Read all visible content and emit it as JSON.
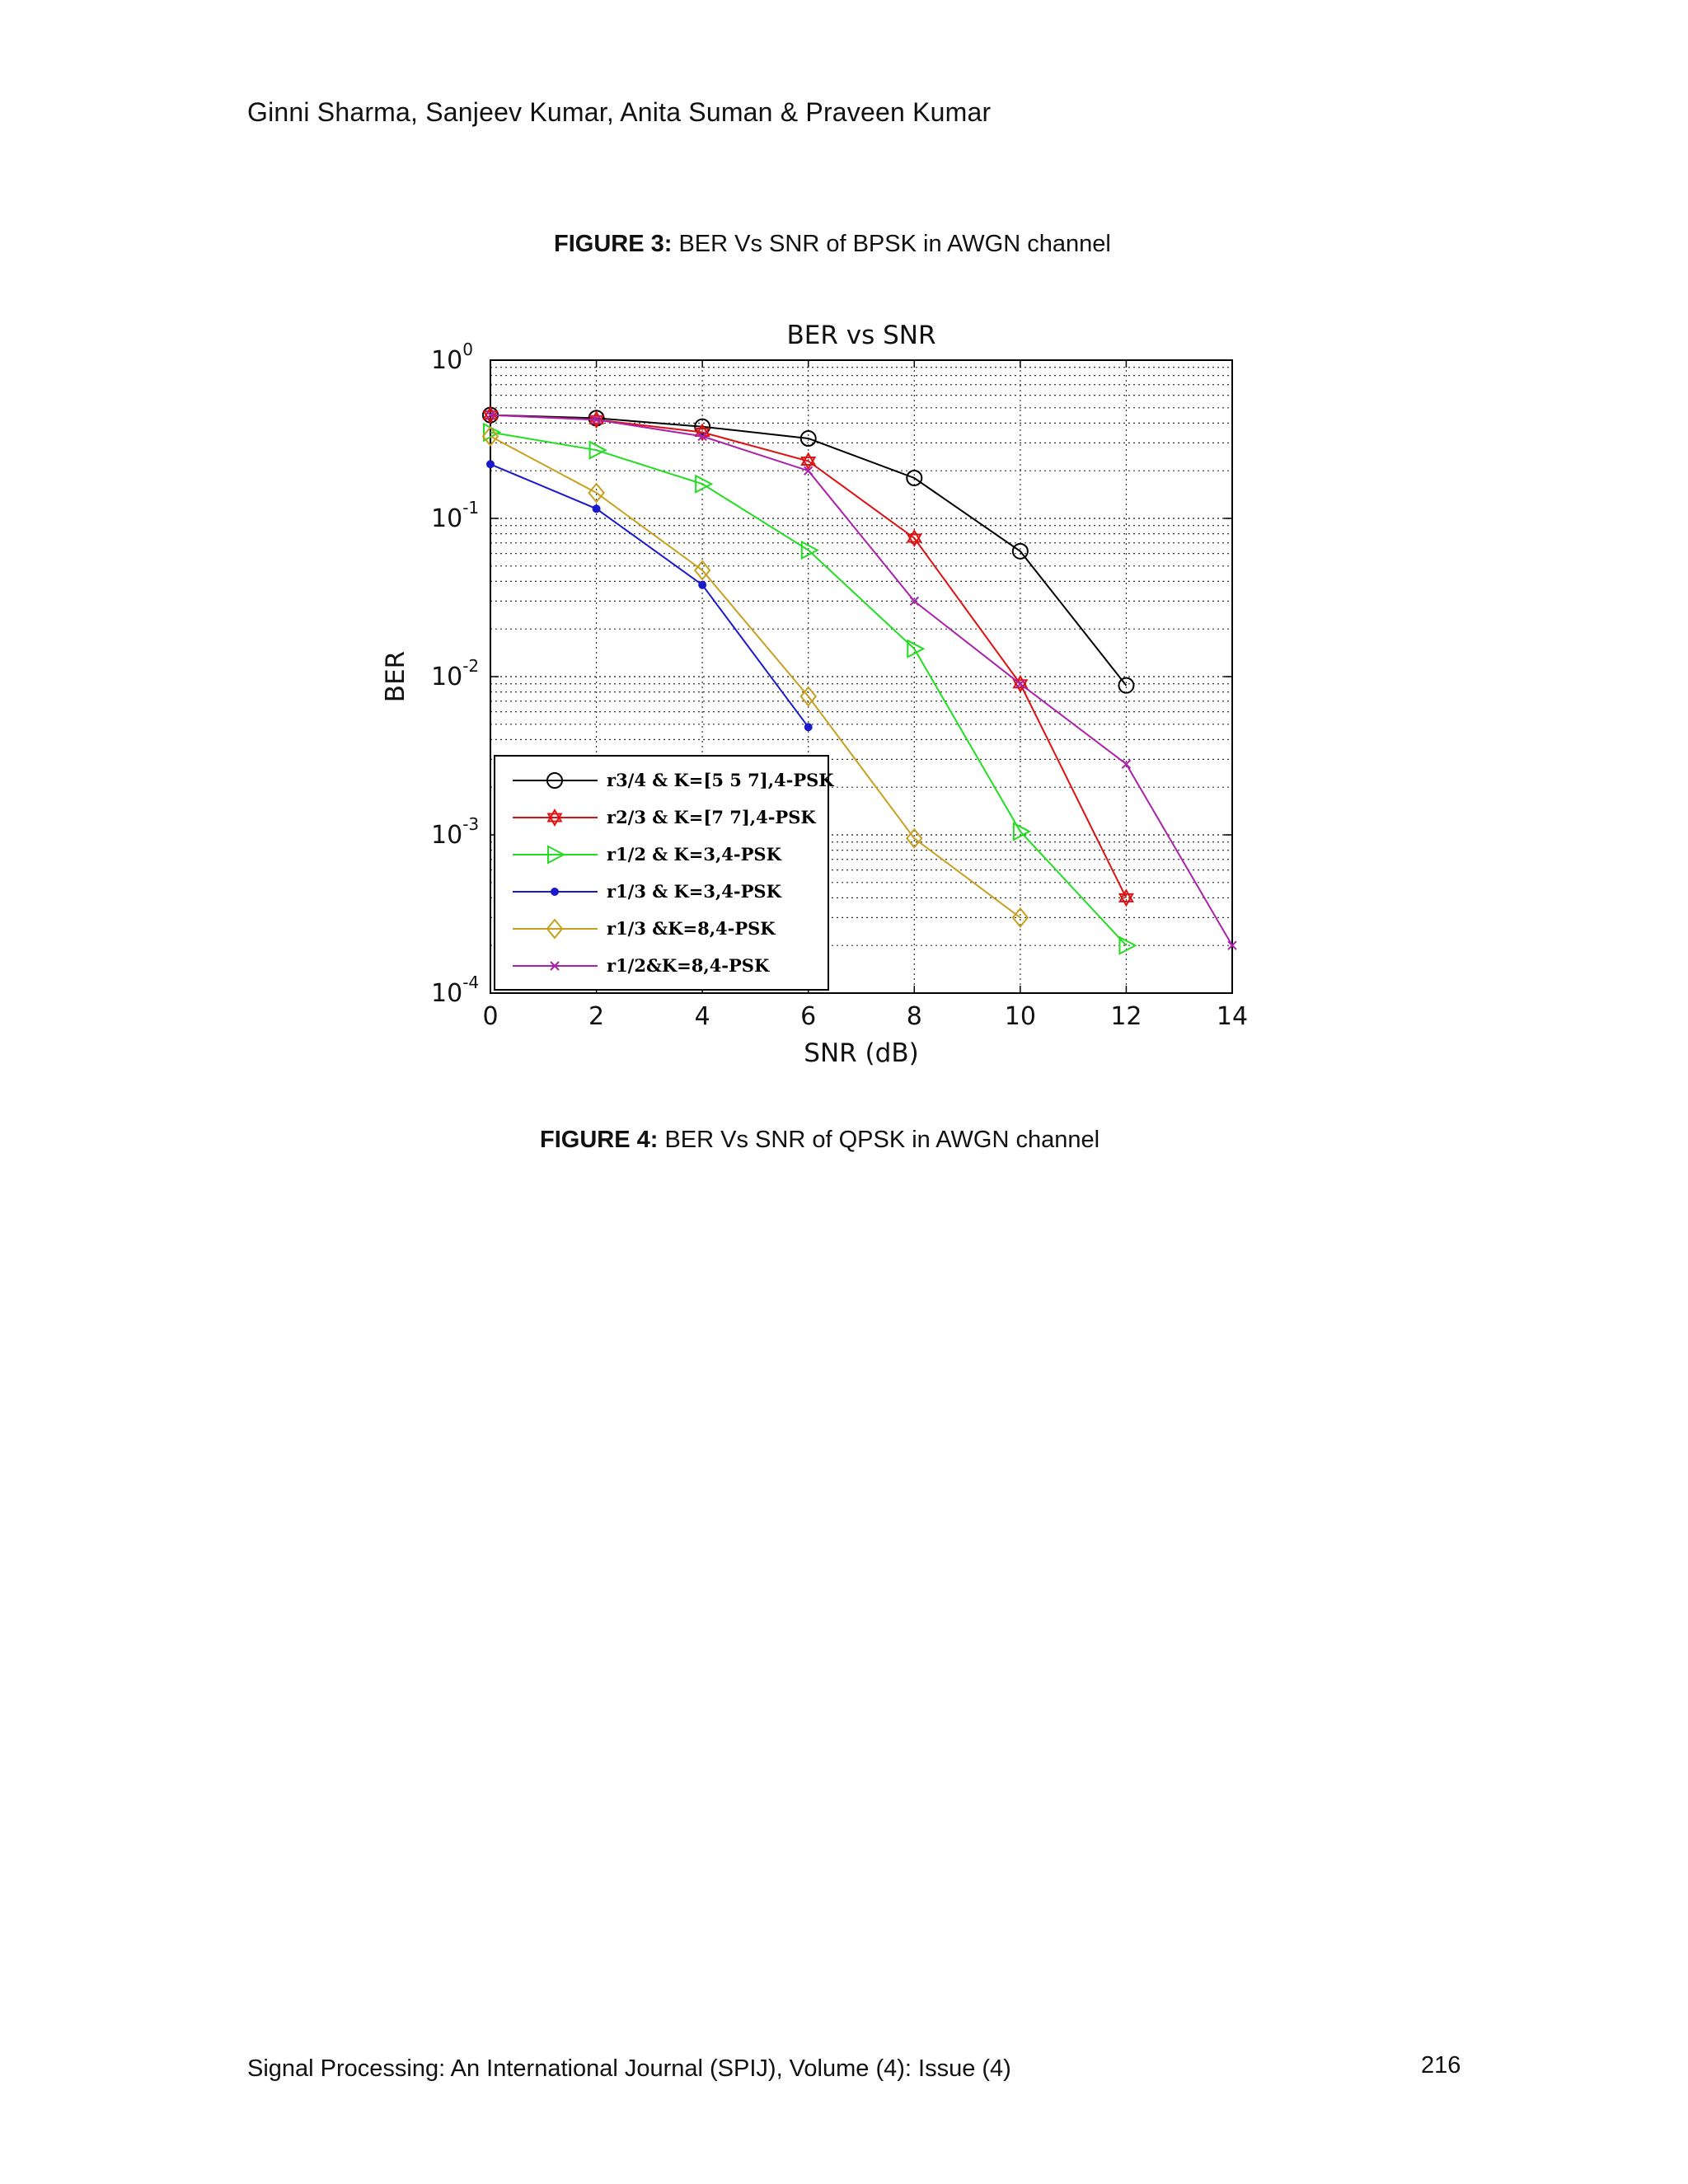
{
  "header": {
    "authors": "Ginni Sharma, Sanjeev Kumar, Anita Suman & Praveen Kumar"
  },
  "figure3": {
    "label": "FIGURE 3:",
    "text": " BER Vs SNR of BPSK in AWGN channel"
  },
  "figure4": {
    "label": "FIGURE 4:",
    "text": " BER Vs SNR of QPSK in AWGN channel"
  },
  "footer": {
    "journal": "Signal Processing: An International Journal (SPIJ), Volume (4): Issue (4)",
    "page_number": "216"
  },
  "chart_data": {
    "type": "line",
    "title": "BER vs SNR",
    "xlabel": "SNR (dB)",
    "ylabel": "BER",
    "xlim": [
      0,
      14
    ],
    "ylim": [
      0.0001,
      1
    ],
    "yscale": "log",
    "grid": true,
    "legend_position": "bottom-left",
    "x_ticks": [
      "0",
      "2",
      "4",
      "6",
      "8",
      "10",
      "12",
      "14"
    ],
    "y_ticks": [
      {
        "base": "10",
        "exp": "0",
        "value": 1
      },
      {
        "base": "10",
        "exp": "-1",
        "value": 0.1
      },
      {
        "base": "10",
        "exp": "-2",
        "value": 0.01
      },
      {
        "base": "10",
        "exp": "-3",
        "value": 0.001
      },
      {
        "base": "10",
        "exp": "-4",
        "value": 0.0001
      }
    ],
    "series": [
      {
        "name": "r3/4 & K=[5 5 7],4-PSK",
        "color": "#000000",
        "marker": "circle",
        "x": [
          0,
          2,
          4,
          6,
          8,
          10,
          12
        ],
        "y": [
          0.45,
          0.43,
          0.38,
          0.32,
          0.18,
          0.062,
          0.0088
        ]
      },
      {
        "name": "r2/3 & K=[7 7],4-PSK",
        "color": "#dd1111",
        "marker": "hexagram",
        "x": [
          0,
          2,
          4,
          6,
          8,
          10,
          12
        ],
        "y": [
          0.45,
          0.42,
          0.35,
          0.23,
          0.075,
          0.009,
          0.0004
        ]
      },
      {
        "name": "r1/2 & K=3,4-PSK",
        "color": "#22dd22",
        "marker": "triangle-right",
        "x": [
          0,
          2,
          4,
          6,
          8,
          10,
          12
        ],
        "y": [
          0.35,
          0.27,
          0.165,
          0.063,
          0.015,
          0.00105,
          0.0002
        ]
      },
      {
        "name": "r1/3 & K=3,4-PSK",
        "color": "#1a1acc",
        "marker": "dot",
        "x": [
          0,
          2,
          4,
          6
        ],
        "y": [
          0.22,
          0.115,
          0.038,
          0.0048
        ]
      },
      {
        "name": "r1/3 &K=8,4-PSK",
        "color": "#c8a020",
        "marker": "diamond",
        "x": [
          0,
          2,
          4,
          6,
          8,
          10
        ],
        "y": [
          0.33,
          0.145,
          0.047,
          0.0075,
          0.00095,
          0.0003
        ]
      },
      {
        "name": "r1/2&K=8,4-PSK",
        "color": "#aa22aa",
        "marker": "x",
        "x": [
          0,
          2,
          4,
          6,
          8,
          10,
          12,
          14
        ],
        "y": [
          0.45,
          0.42,
          0.33,
          0.2,
          0.03,
          0.009,
          0.0028,
          0.0002
        ]
      }
    ]
  }
}
